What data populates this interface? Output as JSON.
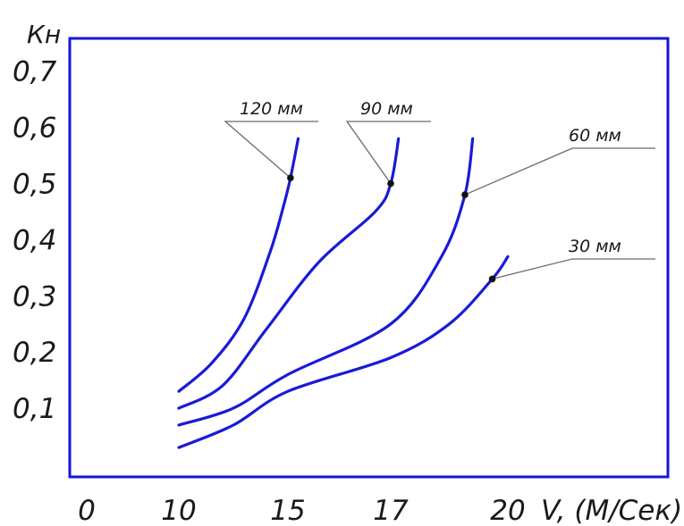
{
  "chart_data": {
    "type": "line",
    "ylabel": "Кн",
    "xlabel": "V, (М/Сек)",
    "x_ticks": [
      "0",
      "10",
      "15",
      "17",
      "20"
    ],
    "y_ticks": [
      "0,1",
      "0,2",
      "0,3",
      "0,4",
      "0,5",
      "0,6",
      "0,7"
    ],
    "ylim": [
      0,
      0.8
    ],
    "grid": false,
    "colors": {
      "frame": "#1515d8",
      "series": "#1a1ad6",
      "text": "#1a1a1a"
    },
    "series": [
      {
        "name": "120 мм",
        "points": [
          [
            10,
            0.13
          ],
          [
            11.5,
            0.18
          ],
          [
            13,
            0.26
          ],
          [
            14.2,
            0.38
          ],
          [
            14.8,
            0.46
          ],
          [
            15.05,
            0.51
          ],
          [
            15.2,
            0.58
          ]
        ],
        "marker": [
          15.05,
          0.51
        ]
      },
      {
        "name": "90 мм",
        "points": [
          [
            10,
            0.1
          ],
          [
            12,
            0.14
          ],
          [
            14,
            0.24
          ],
          [
            15.6,
            0.36
          ],
          [
            16.7,
            0.45
          ],
          [
            17.0,
            0.5
          ],
          [
            17.2,
            0.58
          ]
        ],
        "marker": [
          17.0,
          0.5
        ]
      },
      {
        "name": "60 мм",
        "points": [
          [
            10,
            0.07
          ],
          [
            12.5,
            0.1
          ],
          [
            15,
            0.16
          ],
          [
            17,
            0.25
          ],
          [
            18.3,
            0.37
          ],
          [
            18.9,
            0.48
          ],
          [
            19.1,
            0.58
          ]
        ],
        "marker": [
          18.9,
          0.48
        ]
      },
      {
        "name": "30 мм",
        "points": [
          [
            10,
            0.03
          ],
          [
            12.5,
            0.07
          ],
          [
            15,
            0.13
          ],
          [
            17,
            0.19
          ],
          [
            18.5,
            0.25
          ],
          [
            19.6,
            0.33
          ],
          [
            20.0,
            0.37
          ]
        ],
        "marker": [
          19.6,
          0.33
        ]
      }
    ]
  }
}
